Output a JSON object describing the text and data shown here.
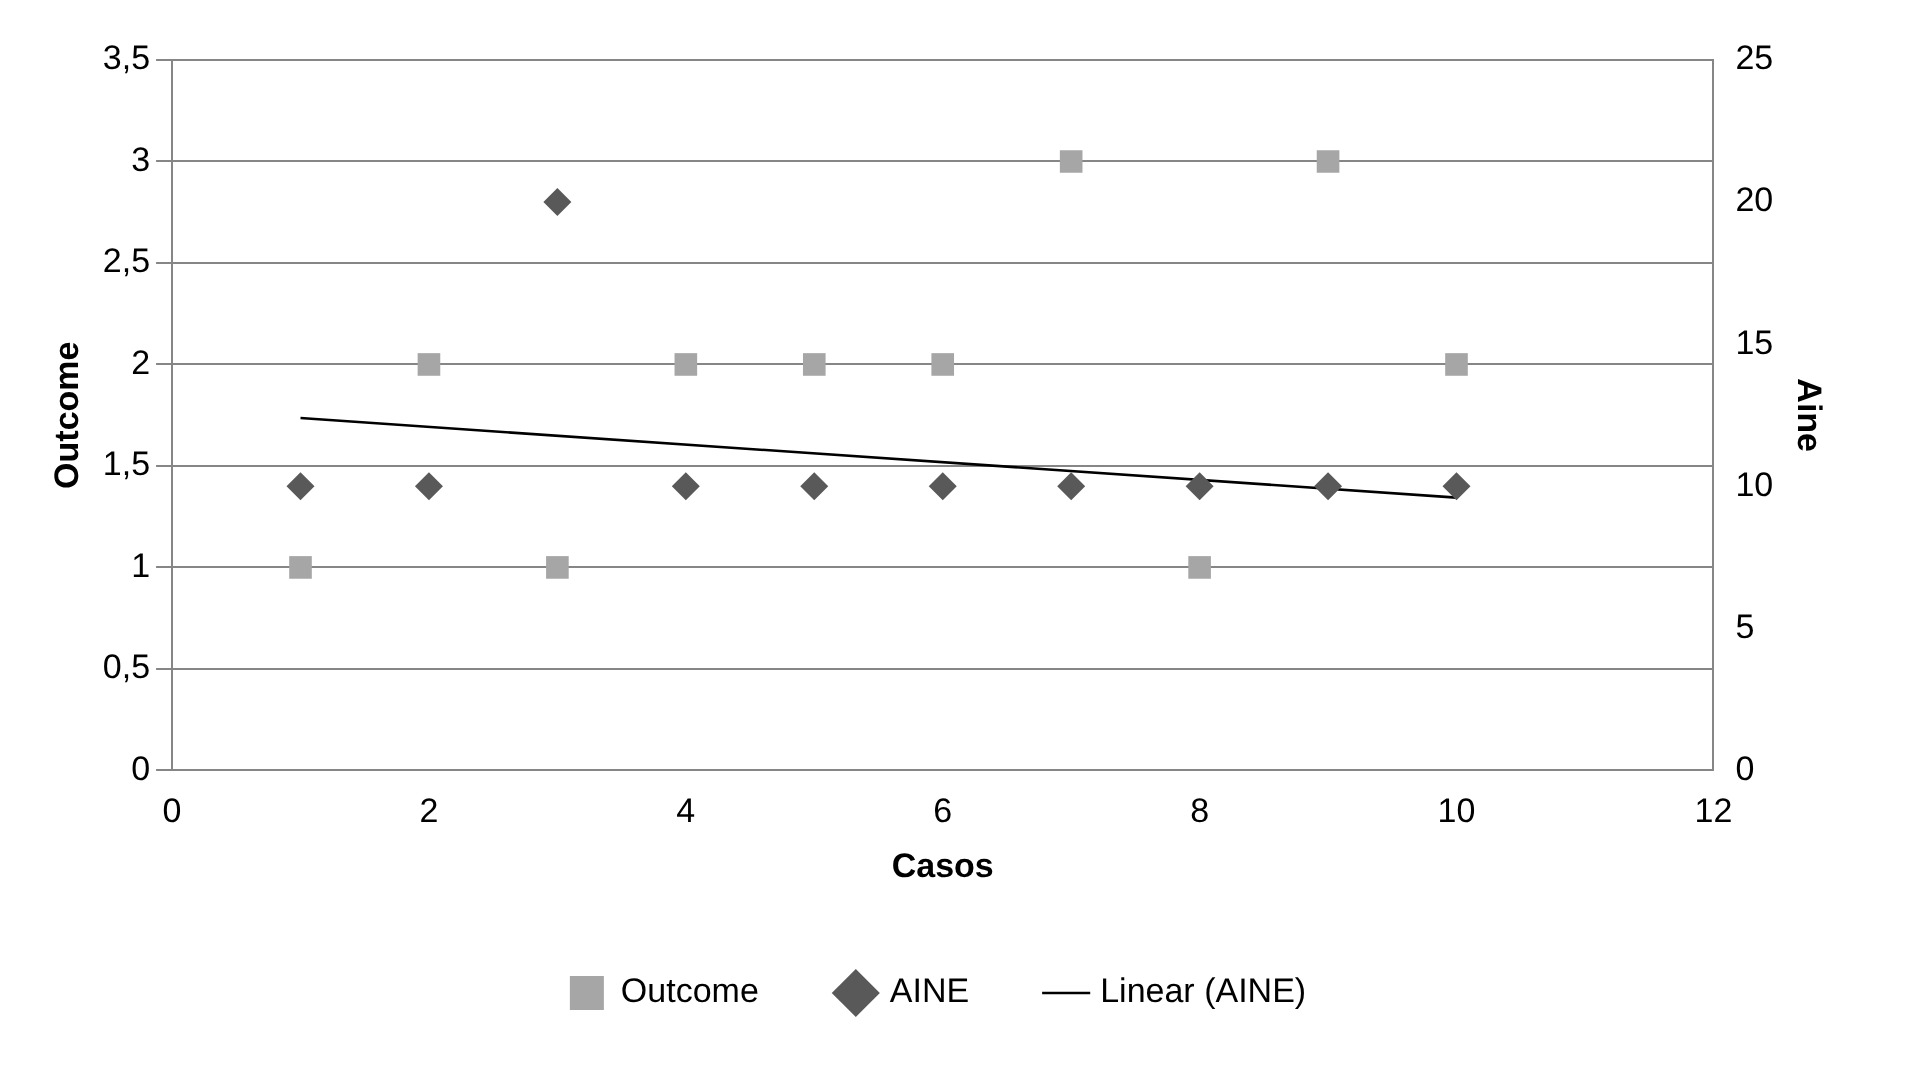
{
  "chart_data": {
    "type": "scatter",
    "xlabel": "Casos",
    "ylabel": "Outcome",
    "y2label": "Aine",
    "xlim": [
      0,
      12
    ],
    "xticks": [
      0,
      2,
      4,
      6,
      8,
      10,
      12
    ],
    "ylim": [
      0,
      3.5
    ],
    "yticks": [
      0,
      {
        "value": 0.5,
        "label": "0,5"
      },
      1,
      {
        "value": 1.5,
        "label": "1,5"
      },
      2,
      {
        "value": 2.5,
        "label": "2,5"
      },
      3,
      {
        "value": 3.5,
        "label": "3,5"
      }
    ],
    "y2lim": [
      0,
      25
    ],
    "y2ticks": [
      0,
      5,
      10,
      15,
      20,
      25
    ],
    "grid": "y",
    "legend": "bottom",
    "series": [
      {
        "name": "Outcome",
        "marker": "square",
        "color": "#a6a6a6",
        "x": [
          1,
          2,
          3,
          4,
          5,
          6,
          7,
          8,
          9,
          10
        ],
        "values": [
          1,
          2,
          1,
          2,
          2,
          2,
          3,
          1,
          3,
          2
        ]
      },
      {
        "name": "AINE",
        "marker": "diamond",
        "axis": "y2",
        "color": "#595959",
        "x": [
          1,
          2,
          3,
          4,
          5,
          6,
          7,
          8,
          9,
          10
        ],
        "values": [
          10,
          10,
          20,
          10,
          10,
          10,
          10,
          10,
          10,
          10
        ]
      },
      {
        "name": "Linear (AINE)",
        "type": "line",
        "marker": "none",
        "line_style": "solid",
        "axis": "y2",
        "color": "#000000",
        "x": [
          1,
          10
        ],
        "values": [
          12.4,
          9.6
        ]
      }
    ]
  }
}
